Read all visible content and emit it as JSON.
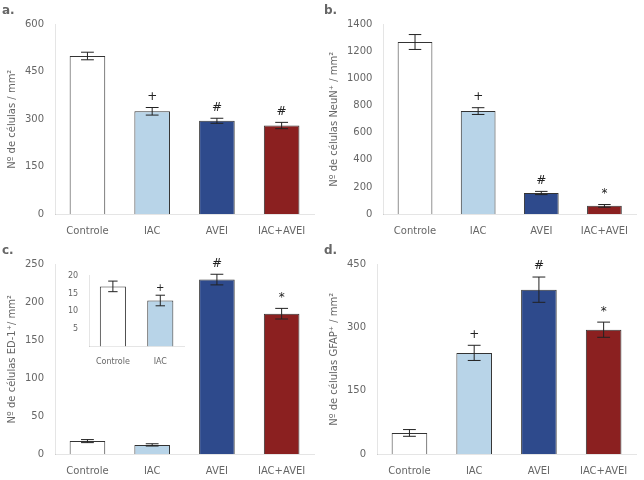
{
  "chart_data": [
    {
      "type": "bar",
      "title": "a.",
      "categories": [
        "Controle",
        "IAC",
        "AVEI",
        "IAC+AVEI"
      ],
      "values": [
        500,
        325,
        295,
        280
      ],
      "errors": [
        12,
        12,
        8,
        10
      ],
      "colors": [
        "white",
        "#b8d4e8",
        "#2e4a8c",
        "#8b2020"
      ],
      "ylabel": "Nº de células / mm²",
      "ylim": [
        0,
        600
      ],
      "yticks": [
        0,
        150,
        300,
        450,
        600
      ],
      "annotations": [
        null,
        "+",
        "#",
        "#"
      ],
      "grid": false
    },
    {
      "type": "bar",
      "title": "b.",
      "categories": [
        "Controle",
        "IAC",
        "AVEI",
        "IAC+AVEI"
      ],
      "values": [
        1270,
        760,
        155,
        60
      ],
      "errors": [
        55,
        25,
        12,
        10
      ],
      "colors": [
        "white",
        "#b8d4e8",
        "#2e4a8c",
        "#8b2020"
      ],
      "ylabel": "Nº de células NeuN⁺ / mm²",
      "ylim": [
        0,
        1400
      ],
      "yticks": [
        0,
        200,
        400,
        600,
        800,
        1000,
        1200,
        1400
      ],
      "annotations": [
        null,
        "+",
        "#",
        "*"
      ],
      "grid": false
    },
    {
      "type": "bar",
      "title": "c.",
      "categories": [
        "Controle",
        "IAC",
        "AVEI",
        "IAC+AVEI"
      ],
      "values": [
        17,
        12,
        230,
        185
      ],
      "errors": [
        2,
        1.5,
        7,
        7
      ],
      "colors": [
        "white",
        "#b8d4e8",
        "#2e4a8c",
        "#8b2020"
      ],
      "ylabel": "Nº de células ED-1⁺/ mm²",
      "ylim": [
        0,
        250
      ],
      "yticks": [
        0,
        50,
        100,
        150,
        200,
        250
      ],
      "annotations": [
        null,
        null,
        "#",
        "*"
      ],
      "grid": false,
      "inset": {
        "type": "bar",
        "categories": [
          "Controle",
          "IAC"
        ],
        "values": [
          17,
          13
        ],
        "errors": [
          1.5,
          1.5
        ],
        "colors": [
          "white",
          "#b8d4e8"
        ],
        "ylim": [
          0,
          20
        ],
        "yticks": [
          5,
          10,
          15,
          20
        ],
        "annotations": [
          null,
          "+"
        ],
        "grid": false
      }
    },
    {
      "type": "bar",
      "title": "d.",
      "categories": [
        "Controle",
        "IAC",
        "AVEI",
        "IAC+AVEI"
      ],
      "values": [
        50,
        240,
        390,
        295
      ],
      "errors": [
        8,
        18,
        30,
        18
      ],
      "colors": [
        "white",
        "#b8d4e8",
        "#2e4a8c",
        "#8b2020"
      ],
      "ylabel": "Nº de células GFAP⁺ / mm²",
      "ylim": [
        0,
        450
      ],
      "yticks": [
        0,
        150,
        300,
        450
      ],
      "annotations": [
        null,
        "+",
        "#",
        "*"
      ],
      "grid": false
    }
  ]
}
